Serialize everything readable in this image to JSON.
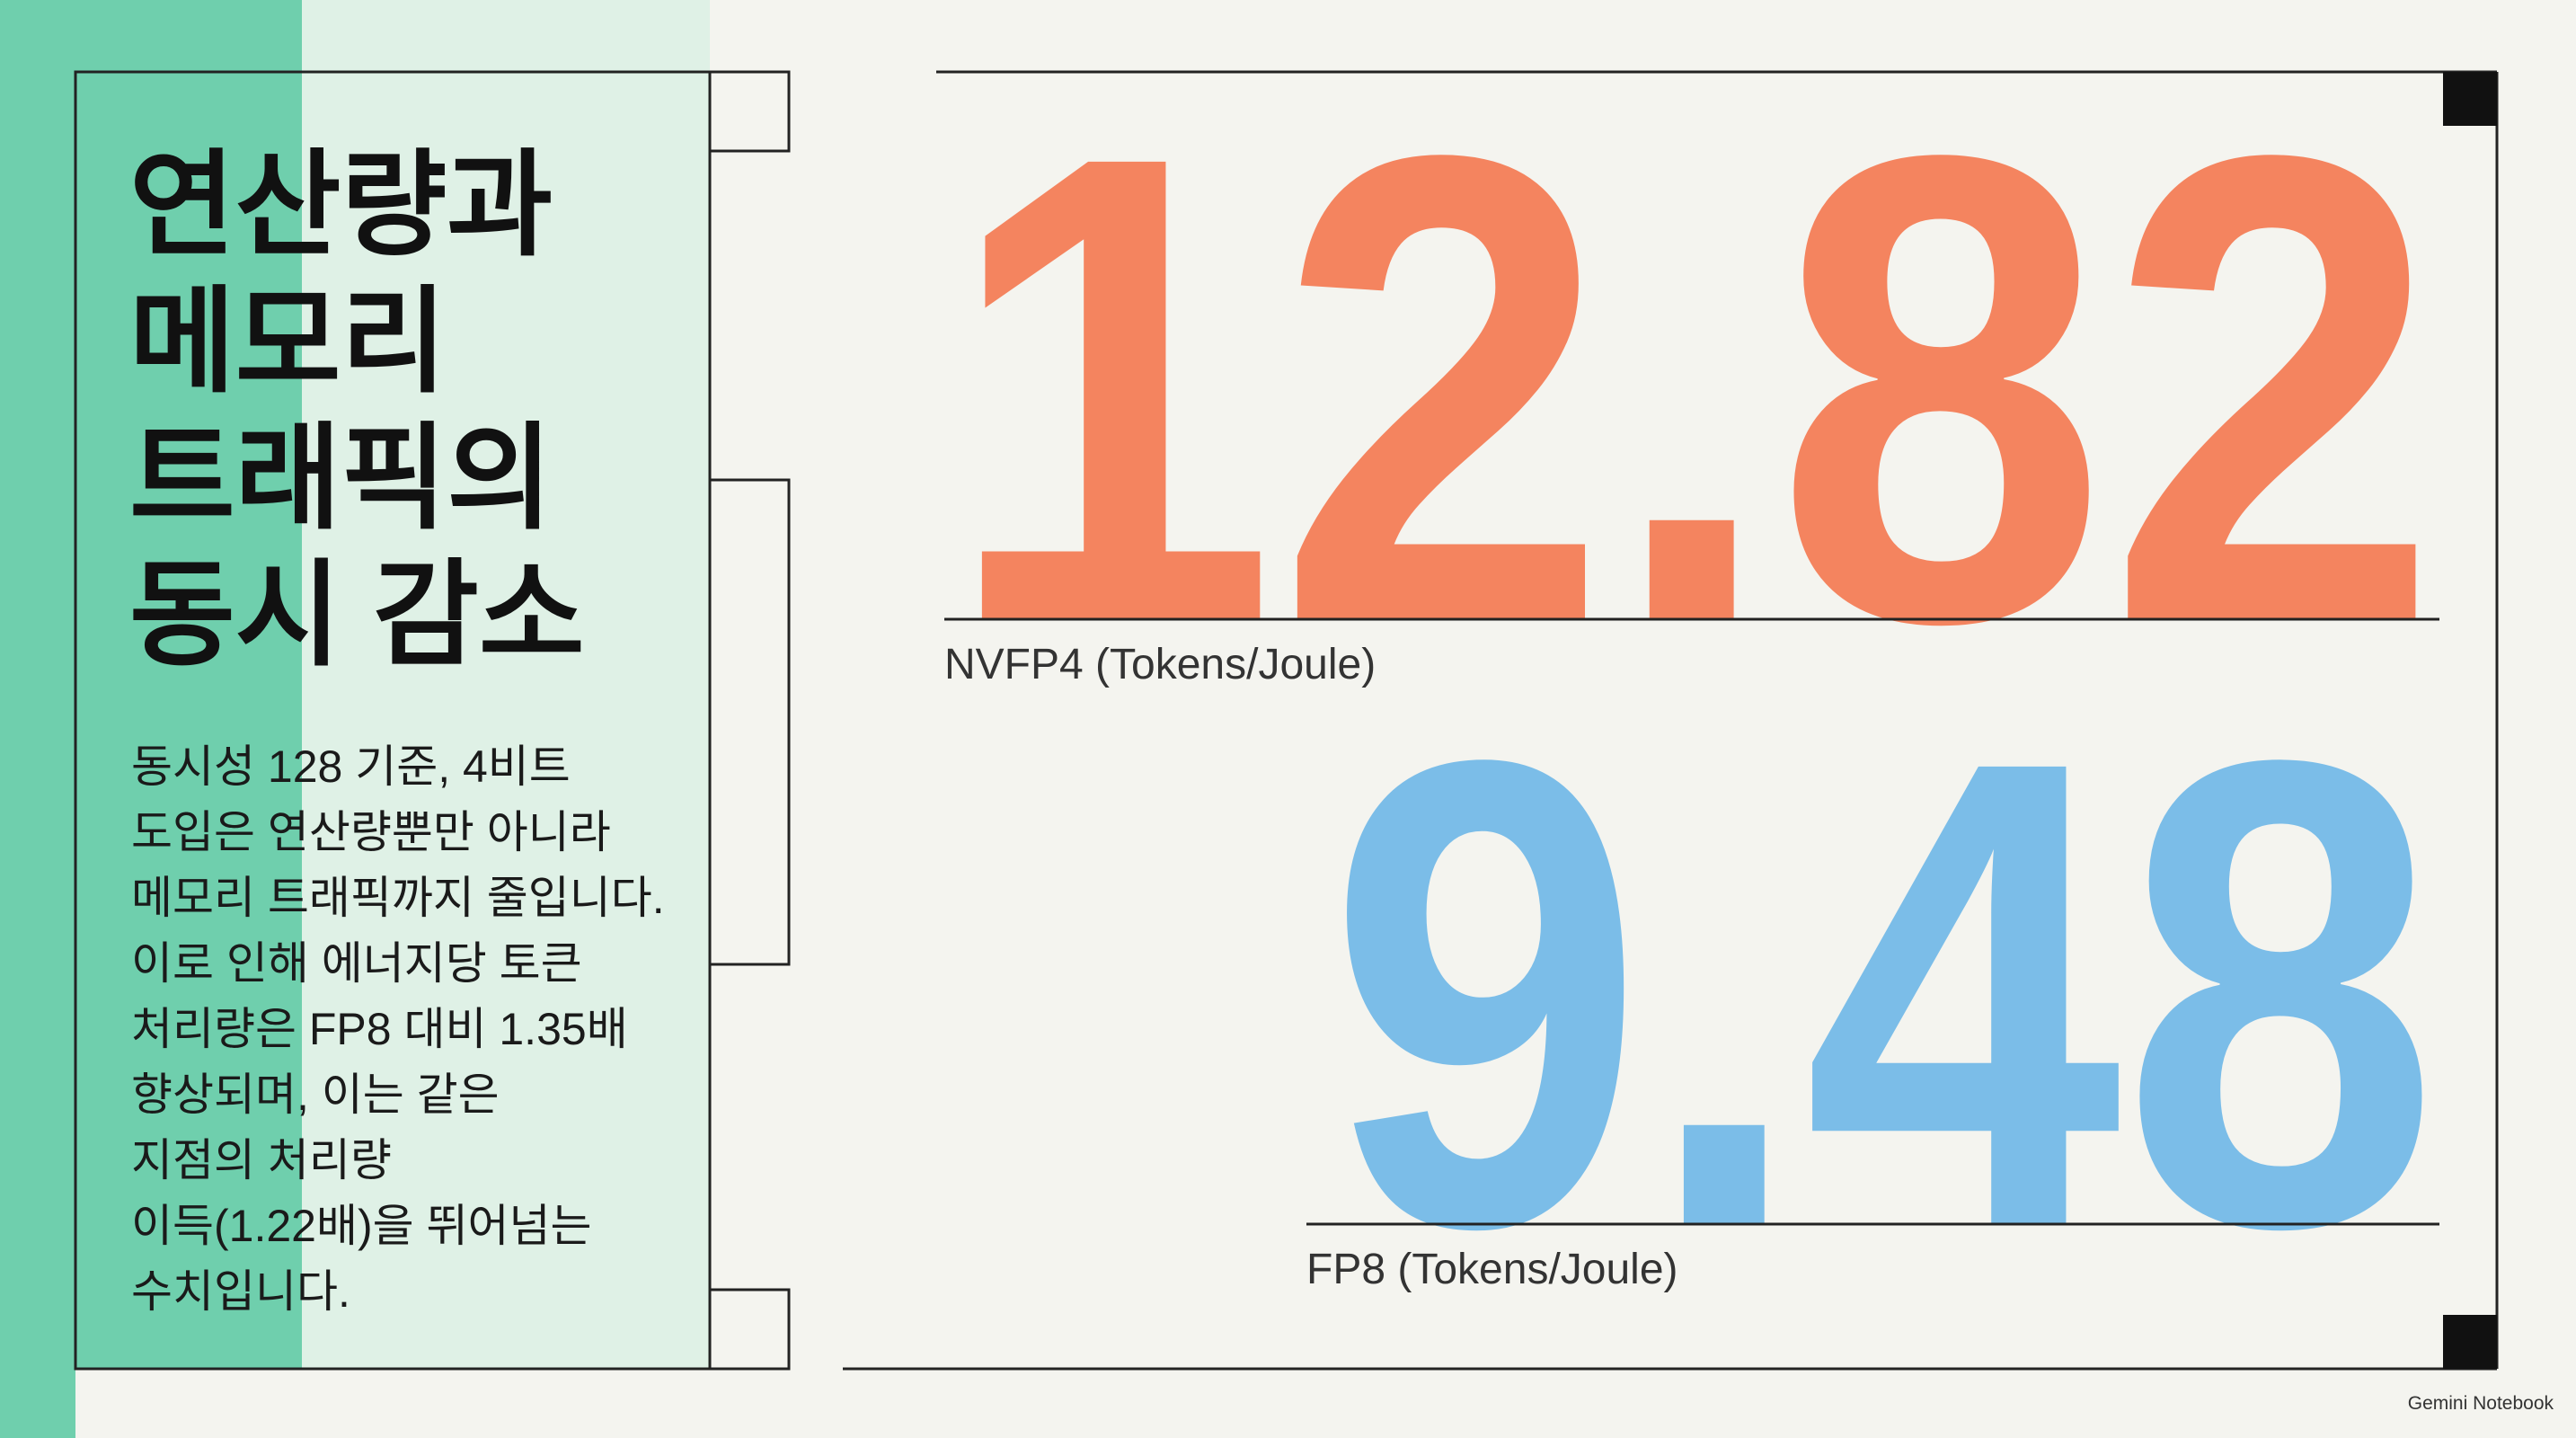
{
  "title": {
    "lines": [
      "연산량과",
      "메모리",
      "트래픽의",
      "동시 감소"
    ]
  },
  "body": {
    "lines": [
      "동시성 128 기준, 4비트",
      "도입은 연산량뿐만 아니라",
      "메모리 트래픽까지 줄입니다.",
      "이로 인해 에너지당 토큰",
      "처리량은 FP8 대비 1.35배",
      "향상되며, 이는 같은",
      "지점의 처리량",
      "이득(1.22배)을 뛰어넘는",
      "수치입니다."
    ]
  },
  "metrics": [
    {
      "value": "12.82",
      "label": "NVFP4 (Tokens/Joule)"
    },
    {
      "value": "9.48",
      "label": "FP8 (Tokens/Joule)"
    }
  ],
  "footer": {
    "brand": "Gemini Notebook"
  }
}
